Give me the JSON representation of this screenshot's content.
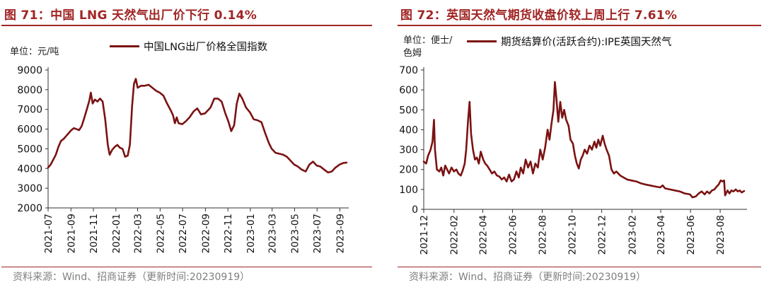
{
  "panels": [
    {
      "title": "图 71：中国 LNG 天然气出厂价下行 0.14%",
      "unit": "单位：元/吨",
      "source": "资料来源：Wind、招商证券（更新时间:20230919）"
    },
    {
      "title": "图 72：英国天然气期货收盘价较上周上行 7.61%",
      "unit_line1": "单位：便士/",
      "unit_line2": "色姆",
      "source": "资料来源：Wind、招商证券（更新时间:20230919）"
    }
  ],
  "colors": {
    "accent": "#a02624",
    "series": "#7b1212",
    "source_text": "#7f7f7f"
  },
  "chart_data": [
    {
      "type": "line",
      "series": [
        {
          "name": "中国LNG出厂价格全国指数"
        }
      ],
      "yticks": [
        2000,
        3000,
        4000,
        5000,
        6000,
        7000,
        8000,
        9000
      ],
      "ylim": [
        2000,
        9000
      ],
      "xlim": [
        "2021-07-01",
        "2023-09-25"
      ],
      "xticks": [
        "2021-07",
        "2021-09",
        "2021-11",
        "2022-01",
        "2022-03",
        "2022-05",
        "2022-07",
        "2022-09",
        "2022-11",
        "2023-01",
        "2023-03",
        "2023-05",
        "2023-07",
        "2023-09"
      ],
      "grid": false,
      "legend": "top",
      "points": [
        [
          "2021-07-01",
          4050
        ],
        [
          "2021-07-08",
          4200
        ],
        [
          "2021-07-15",
          4450
        ],
        [
          "2021-07-22",
          4700
        ],
        [
          "2021-07-29",
          5100
        ],
        [
          "2021-08-05",
          5400
        ],
        [
          "2021-08-12",
          5500
        ],
        [
          "2021-08-19",
          5650
        ],
        [
          "2021-08-26",
          5800
        ],
        [
          "2021-09-02",
          5950
        ],
        [
          "2021-09-09",
          6050
        ],
        [
          "2021-09-16",
          6000
        ],
        [
          "2021-09-23",
          5950
        ],
        [
          "2021-09-30",
          6150
        ],
        [
          "2021-10-07",
          6550
        ],
        [
          "2021-10-14",
          7000
        ],
        [
          "2021-10-21",
          7450
        ],
        [
          "2021-10-25",
          7850
        ],
        [
          "2021-10-30",
          7300
        ],
        [
          "2021-11-05",
          7500
        ],
        [
          "2021-11-12",
          7400
        ],
        [
          "2021-11-19",
          7550
        ],
        [
          "2021-11-26",
          7400
        ],
        [
          "2021-12-03",
          6500
        ],
        [
          "2021-12-10",
          5200
        ],
        [
          "2021-12-15",
          4700
        ],
        [
          "2021-12-22",
          4950
        ],
        [
          "2021-12-29",
          5100
        ],
        [
          "2022-01-05",
          5200
        ],
        [
          "2022-01-12",
          5050
        ],
        [
          "2022-01-19",
          5000
        ],
        [
          "2022-01-26",
          4600
        ],
        [
          "2022-02-02",
          4650
        ],
        [
          "2022-02-08",
          5200
        ],
        [
          "2022-02-14",
          7200
        ],
        [
          "2022-02-19",
          8300
        ],
        [
          "2022-02-24",
          8550
        ],
        [
          "2022-03-01",
          8100
        ],
        [
          "2022-03-10",
          8200
        ],
        [
          "2022-03-20",
          8200
        ],
        [
          "2022-03-31",
          8250
        ],
        [
          "2022-04-10",
          8100
        ],
        [
          "2022-04-20",
          7950
        ],
        [
          "2022-04-30",
          7850
        ],
        [
          "2022-05-10",
          7700
        ],
        [
          "2022-05-20",
          7300
        ],
        [
          "2022-05-30",
          6950
        ],
        [
          "2022-06-05",
          6700
        ],
        [
          "2022-06-10",
          6300
        ],
        [
          "2022-06-15",
          6600
        ],
        [
          "2022-06-20",
          6300
        ],
        [
          "2022-06-30",
          6250
        ],
        [
          "2022-07-10",
          6400
        ],
        [
          "2022-07-20",
          6600
        ],
        [
          "2022-07-31",
          6900
        ],
        [
          "2022-08-10",
          7050
        ],
        [
          "2022-08-20",
          6750
        ],
        [
          "2022-08-31",
          6800
        ],
        [
          "2022-09-10",
          7000
        ],
        [
          "2022-09-15",
          7100
        ],
        [
          "2022-09-25",
          7550
        ],
        [
          "2022-10-05",
          7550
        ],
        [
          "2022-10-15",
          7400
        ],
        [
          "2022-10-25",
          6800
        ],
        [
          "2022-11-02",
          6400
        ],
        [
          "2022-11-10",
          5900
        ],
        [
          "2022-11-18",
          6200
        ],
        [
          "2022-11-25",
          7300
        ],
        [
          "2022-12-02",
          7800
        ],
        [
          "2022-12-10",
          7550
        ],
        [
          "2022-12-20",
          7100
        ],
        [
          "2022-12-31",
          6850
        ],
        [
          "2023-01-10",
          6500
        ],
        [
          "2023-01-20",
          6450
        ],
        [
          "2023-01-31",
          6350
        ],
        [
          "2023-02-10",
          5800
        ],
        [
          "2023-02-20",
          5300
        ],
        [
          "2023-02-28",
          5000
        ],
        [
          "2023-03-10",
          4800
        ],
        [
          "2023-03-20",
          4750
        ],
        [
          "2023-03-31",
          4700
        ],
        [
          "2023-04-10",
          4600
        ],
        [
          "2023-04-20",
          4400
        ],
        [
          "2023-04-30",
          4200
        ],
        [
          "2023-05-10",
          4100
        ],
        [
          "2023-05-20",
          3950
        ],
        [
          "2023-05-31",
          3850
        ],
        [
          "2023-06-10",
          4200
        ],
        [
          "2023-06-20",
          4350
        ],
        [
          "2023-06-30",
          4150
        ],
        [
          "2023-07-10",
          4100
        ],
        [
          "2023-07-20",
          3950
        ],
        [
          "2023-07-31",
          3800
        ],
        [
          "2023-08-10",
          3850
        ],
        [
          "2023-08-20",
          4050
        ],
        [
          "2023-08-31",
          4200
        ],
        [
          "2023-09-10",
          4280
        ],
        [
          "2023-09-19",
          4300
        ]
      ]
    },
    {
      "type": "line",
      "series": [
        {
          "name": "期货结算价(活跃合约):IPE英国天然气"
        }
      ],
      "yticks": [
        0,
        100,
        200,
        300,
        400,
        500,
        600,
        700
      ],
      "ylim": [
        0,
        700
      ],
      "xlim": [
        "2021-12-01",
        "2023-09-25"
      ],
      "xticks": [
        "2021-12",
        "2022-02",
        "2022-04",
        "2022-06",
        "2022-08",
        "2022-10",
        "2022-12",
        "2023-02",
        "2023-04",
        "2023-06",
        "2023-08"
      ],
      "grid": false,
      "legend": "top",
      "points": [
        [
          "2021-12-01",
          240
        ],
        [
          "2021-12-06",
          230
        ],
        [
          "2021-12-10",
          270
        ],
        [
          "2021-12-15",
          300
        ],
        [
          "2021-12-19",
          340
        ],
        [
          "2021-12-22",
          450
        ],
        [
          "2021-12-24",
          300
        ],
        [
          "2021-12-28",
          200
        ],
        [
          "2022-01-02",
          190
        ],
        [
          "2022-01-06",
          210
        ],
        [
          "2022-01-10",
          170
        ],
        [
          "2022-01-14",
          220
        ],
        [
          "2022-01-18",
          200
        ],
        [
          "2022-01-22",
          180
        ],
        [
          "2022-01-27",
          210
        ],
        [
          "2022-02-01",
          190
        ],
        [
          "2022-02-06",
          200
        ],
        [
          "2022-02-10",
          180
        ],
        [
          "2022-02-15",
          170
        ],
        [
          "2022-02-19",
          195
        ],
        [
          "2022-02-23",
          230
        ],
        [
          "2022-02-26",
          300
        ],
        [
          "2022-03-02",
          450
        ],
        [
          "2022-03-05",
          540
        ],
        [
          "2022-03-08",
          380
        ],
        [
          "2022-03-12",
          300
        ],
        [
          "2022-03-16",
          250
        ],
        [
          "2022-03-20",
          260
        ],
        [
          "2022-03-24",
          230
        ],
        [
          "2022-03-28",
          290
        ],
        [
          "2022-04-02",
          250
        ],
        [
          "2022-04-06",
          230
        ],
        [
          "2022-04-10",
          220
        ],
        [
          "2022-04-15",
          200
        ],
        [
          "2022-04-20",
          180
        ],
        [
          "2022-04-25",
          190
        ],
        [
          "2022-04-30",
          170
        ],
        [
          "2022-05-05",
          165
        ],
        [
          "2022-05-10",
          150
        ],
        [
          "2022-05-15",
          160
        ],
        [
          "2022-05-20",
          140
        ],
        [
          "2022-05-25",
          175
        ],
        [
          "2022-05-30",
          140
        ],
        [
          "2022-06-04",
          150
        ],
        [
          "2022-06-09",
          190
        ],
        [
          "2022-06-14",
          160
        ],
        [
          "2022-06-18",
          210
        ],
        [
          "2022-06-23",
          180
        ],
        [
          "2022-06-28",
          250
        ],
        [
          "2022-07-03",
          210
        ],
        [
          "2022-07-08",
          240
        ],
        [
          "2022-07-13",
          180
        ],
        [
          "2022-07-18",
          230
        ],
        [
          "2022-07-23",
          210
        ],
        [
          "2022-07-28",
          300
        ],
        [
          "2022-08-02",
          250
        ],
        [
          "2022-08-07",
          310
        ],
        [
          "2022-08-12",
          400
        ],
        [
          "2022-08-16",
          350
        ],
        [
          "2022-08-20",
          430
        ],
        [
          "2022-08-24",
          500
        ],
        [
          "2022-08-27",
          640
        ],
        [
          "2022-08-30",
          560
        ],
        [
          "2022-09-03",
          440
        ],
        [
          "2022-09-07",
          540
        ],
        [
          "2022-09-11",
          460
        ],
        [
          "2022-09-15",
          500
        ],
        [
          "2022-09-19",
          450
        ],
        [
          "2022-09-24",
          420
        ],
        [
          "2022-09-28",
          350
        ],
        [
          "2022-10-03",
          330
        ],
        [
          "2022-10-07",
          270
        ],
        [
          "2022-10-11",
          230
        ],
        [
          "2022-10-15",
          205
        ],
        [
          "2022-10-19",
          250
        ],
        [
          "2022-10-23",
          270
        ],
        [
          "2022-10-27",
          300
        ],
        [
          "2022-11-01",
          280
        ],
        [
          "2022-11-06",
          320
        ],
        [
          "2022-11-11",
          300
        ],
        [
          "2022-11-16",
          340
        ],
        [
          "2022-11-20",
          310
        ],
        [
          "2022-11-24",
          350
        ],
        [
          "2022-11-28",
          320
        ],
        [
          "2022-12-03",
          370
        ],
        [
          "2022-12-07",
          330
        ],
        [
          "2022-12-11",
          300
        ],
        [
          "2022-12-16",
          270
        ],
        [
          "2022-12-21",
          200
        ],
        [
          "2022-12-26",
          180
        ],
        [
          "2022-12-31",
          190
        ],
        [
          "2023-01-08",
          170
        ],
        [
          "2023-01-15",
          160
        ],
        [
          "2023-01-22",
          150
        ],
        [
          "2023-01-31",
          145
        ],
        [
          "2023-02-10",
          140
        ],
        [
          "2023-02-20",
          130
        ],
        [
          "2023-02-28",
          125
        ],
        [
          "2023-03-10",
          120
        ],
        [
          "2023-03-20",
          115
        ],
        [
          "2023-03-31",
          110
        ],
        [
          "2023-04-05",
          120
        ],
        [
          "2023-04-10",
          105
        ],
        [
          "2023-04-20",
          100
        ],
        [
          "2023-04-30",
          95
        ],
        [
          "2023-05-10",
          90
        ],
        [
          "2023-05-20",
          80
        ],
        [
          "2023-05-31",
          75
        ],
        [
          "2023-06-05",
          60
        ],
        [
          "2023-06-12",
          65
        ],
        [
          "2023-06-18",
          80
        ],
        [
          "2023-06-24",
          90
        ],
        [
          "2023-06-30",
          75
        ],
        [
          "2023-07-05",
          90
        ],
        [
          "2023-07-10",
          80
        ],
        [
          "2023-07-15",
          95
        ],
        [
          "2023-07-20",
          100
        ],
        [
          "2023-07-25",
          115
        ],
        [
          "2023-07-29",
          125
        ],
        [
          "2023-08-02",
          145
        ],
        [
          "2023-08-06",
          140
        ],
        [
          "2023-08-09",
          145
        ],
        [
          "2023-08-11",
          70
        ],
        [
          "2023-08-16",
          95
        ],
        [
          "2023-08-20",
          80
        ],
        [
          "2023-08-24",
          95
        ],
        [
          "2023-08-28",
          90
        ],
        [
          "2023-09-02",
          100
        ],
        [
          "2023-09-06",
          90
        ],
        [
          "2023-09-10",
          95
        ],
        [
          "2023-09-14",
          85
        ],
        [
          "2023-09-19",
          92
        ]
      ]
    }
  ]
}
